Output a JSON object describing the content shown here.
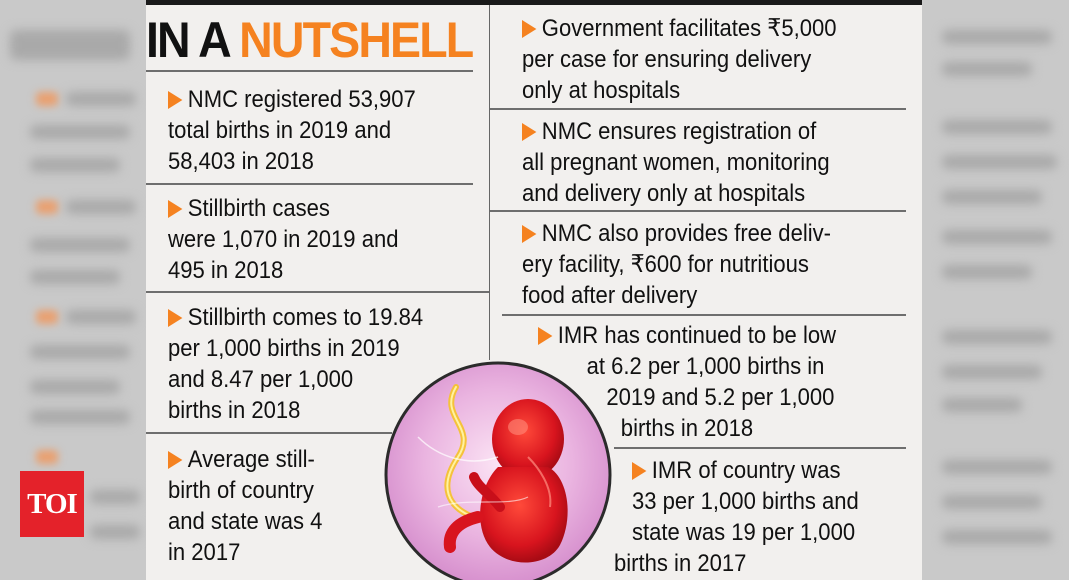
{
  "brand": {
    "logo": "TOI",
    "accent": "#f58220",
    "logo_color": "#e4222a"
  },
  "title": {
    "part1": "IN A ",
    "part2": "NUTSHELL"
  },
  "left_items": [
    {
      "lines": [
        "NMC registered 53,907",
        "total births in 2019 and",
        "58,403 in 2018"
      ]
    },
    {
      "lines": [
        "Stillbirth cases",
        "were 1,070 in 2019 and",
        "495 in 2018"
      ]
    },
    {
      "lines": [
        "Stillbirth comes to 19.84",
        "per 1,000 births in 2019",
        "and 8.47 per 1,000",
        "births in 2018"
      ]
    },
    {
      "lines": [
        "Average still-",
        "birth of country",
        "and state was 4",
        "in 2017"
      ]
    }
  ],
  "right_items": [
    {
      "lines": [
        "Government facilitates ₹5,000",
        "per case for ensuring delivery",
        "only at hospitals"
      ]
    },
    {
      "lines": [
        "NMC ensures registration of",
        "all pregnant women, monitoring",
        "and delivery only at hospitals"
      ]
    },
    {
      "lines": [
        "NMC also provides free deliv-",
        "ery facility, ₹600 for nutritious",
        "food after delivery"
      ]
    },
    {
      "lines": [
        "IMR has continued to be low",
        "at 6.2 per 1,000 births in",
        "2019 and 5.2 per 1,000",
        "births in 2018"
      ]
    },
    {
      "lines": [
        "IMR of country was",
        "33 per 1,000 births and",
        "state was 19 per 1,000",
        "births in 2017"
      ]
    }
  ],
  "illustration": {
    "icon": "fetus-illustration"
  }
}
